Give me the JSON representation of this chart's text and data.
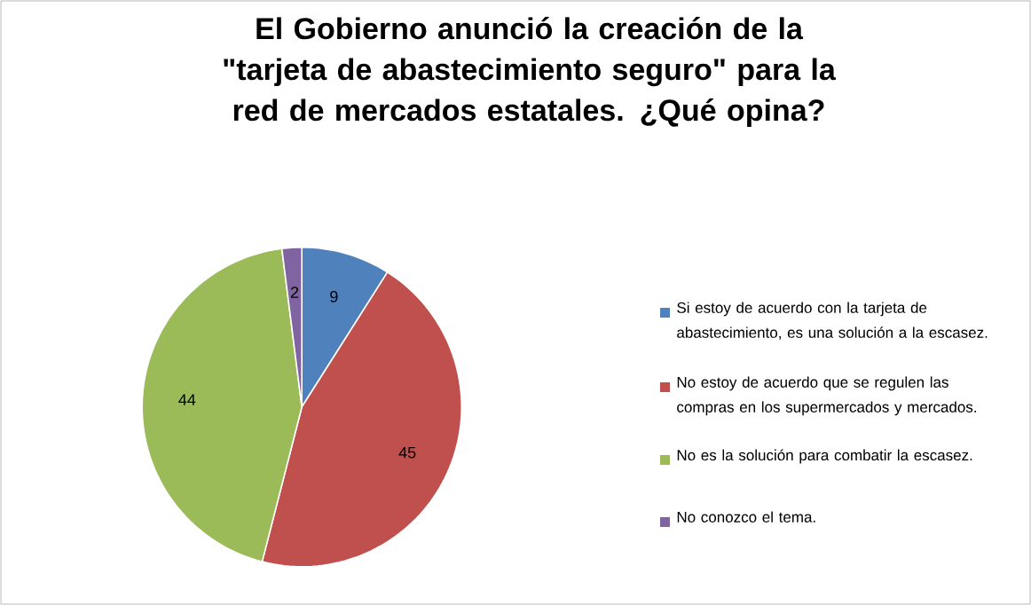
{
  "chart_data": {
    "type": "pie",
    "title": "El Gobierno anunció la creación de la \"tarjeta de abastecimiento seguro\" para la red de mercados estatales. ¿Qué opina?",
    "categories": [
      "Si estoy de acuerdo con la tarjeta de abastecimiento, es una solución a la escasez.",
      "No estoy de acuerdo que se regulen las compras en los supermercados y mercados.",
      "No es la solución para combatir la escasez.",
      "No conozco el tema."
    ],
    "values": [
      9,
      45,
      44,
      2
    ],
    "colors": [
      "#4f81bd",
      "#c0504d",
      "#9bbb59",
      "#8064a2"
    ],
    "data_labels": true,
    "legend": "right"
  }
}
